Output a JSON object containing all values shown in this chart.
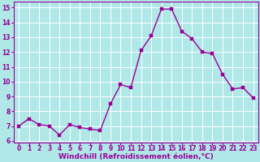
{
  "x": [
    0,
    1,
    2,
    3,
    4,
    5,
    6,
    7,
    8,
    9,
    10,
    11,
    12,
    13,
    14,
    15,
    16,
    17,
    18,
    19,
    20,
    21,
    22,
    23
  ],
  "y": [
    7.0,
    7.5,
    7.1,
    7.0,
    6.4,
    7.1,
    6.9,
    6.8,
    6.7,
    8.5,
    9.8,
    9.6,
    12.1,
    13.1,
    14.9,
    14.9,
    13.4,
    12.9,
    12.0,
    11.9,
    10.5,
    9.5,
    9.6,
    8.9
  ],
  "line_color": "#990099",
  "marker_color": "#990099",
  "bg_color": "#b0e8e8",
  "grid_color": "#ffffff",
  "xlabel": "Windchill (Refroidissement éolien,°C)",
  "xlabel_color": "#990099",
  "tick_color": "#990099",
  "ylim": [
    5.9,
    15.4
  ],
  "xlim": [
    -0.5,
    23.5
  ],
  "yticks": [
    6,
    7,
    8,
    9,
    10,
    11,
    12,
    13,
    14,
    15
  ],
  "xticks": [
    0,
    1,
    2,
    3,
    4,
    5,
    6,
    7,
    8,
    9,
    10,
    11,
    12,
    13,
    14,
    15,
    16,
    17,
    18,
    19,
    20,
    21,
    22,
    23
  ],
  "linewidth": 1.0,
  "markersize": 2.5,
  "tick_fontsize": 5.5,
  "xlabel_fontsize": 6.5
}
